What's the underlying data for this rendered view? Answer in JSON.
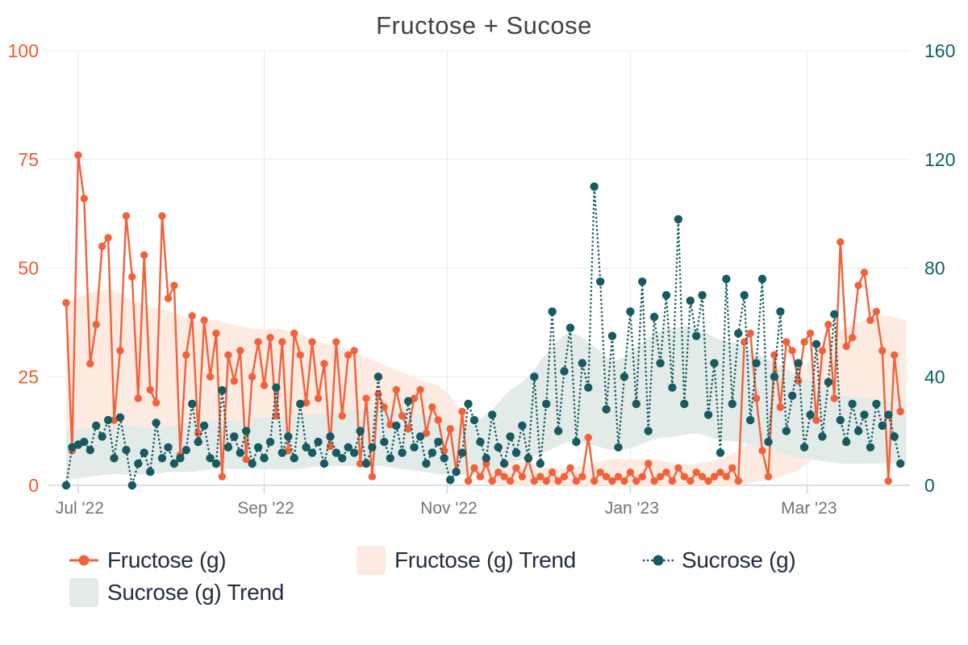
{
  "title": "Fructose + Sucose",
  "legend": {
    "items": [
      {
        "label": "Fructose (g)",
        "marker": "line-dot",
        "color": "#f2613a"
      },
      {
        "label": "Fructose (g) Trend",
        "marker": "area-swatch",
        "color": "#fdebe2"
      },
      {
        "label": "Sucrose (g)",
        "marker": "dotted-dot",
        "color": "#175a61"
      },
      {
        "label": "Sucrose (g) Trend",
        "marker": "area-swatch",
        "color": "#e3ebe9"
      }
    ]
  },
  "chart_data": {
    "type": "line",
    "title": "Fructose + Sucose",
    "x_start_date": "2022-06-27",
    "x_step_days": 2,
    "x_tick_labels": [
      "Jul '22",
      "Sep '22",
      "Nov '22",
      "Jan '23",
      "Mar '23"
    ],
    "x_tick_day_offsets": [
      4,
      66,
      127,
      188,
      247
    ],
    "x_label_color": "#6e747c",
    "y_left": {
      "ticks": [
        0,
        25,
        50,
        75,
        100
      ],
      "lim": [
        0,
        100
      ],
      "color": "#f15a2a"
    },
    "y_right": {
      "ticks": [
        0,
        40,
        80,
        120,
        160
      ],
      "lim": [
        0,
        160
      ],
      "color": "#0e6066"
    },
    "grid": true,
    "legend_position": "bottom",
    "series": [
      {
        "name": "Fructose (g)",
        "axis": "left",
        "color": "#f2613a",
        "line_style": "solid",
        "marker": "circle",
        "values": [
          42,
          8,
          76,
          66,
          28,
          37,
          55,
          57,
          15,
          31,
          62,
          48,
          20,
          53,
          22,
          19,
          62,
          43,
          46,
          7,
          30,
          39,
          12,
          38,
          25,
          35,
          2,
          30,
          24,
          31,
          6,
          25,
          33,
          23,
          34,
          16,
          33,
          8,
          35,
          30,
          19,
          33,
          20,
          28,
          9,
          33,
          16,
          30,
          31,
          5,
          20,
          2,
          21,
          18,
          14,
          22,
          16,
          13,
          20,
          22,
          12,
          18,
          15,
          8,
          13,
          3,
          17,
          1,
          4,
          2,
          5,
          1,
          3,
          2,
          1,
          4,
          2,
          6,
          1,
          2,
          1,
          3,
          1,
          2,
          4,
          1,
          2,
          11,
          1,
          3,
          2,
          1,
          2,
          1,
          3,
          1,
          2,
          5,
          1,
          2,
          3,
          1,
          4,
          2,
          1,
          3,
          2,
          1,
          2,
          3,
          2,
          4,
          1,
          33,
          35,
          20,
          8,
          2,
          30,
          18,
          33,
          31,
          24,
          33,
          35,
          15,
          31,
          37,
          20,
          56,
          32,
          34,
          46,
          49,
          38,
          40,
          31,
          1,
          30,
          17
        ]
      },
      {
        "name": "Sucrose (g)",
        "axis": "right",
        "color": "#175a61",
        "line_style": "dotted",
        "marker": "circle",
        "values": [
          0,
          14,
          15,
          16,
          13,
          22,
          18,
          24,
          10,
          25,
          13,
          0,
          8,
          12,
          5,
          23,
          10,
          14,
          8,
          10,
          13,
          30,
          16,
          22,
          10,
          8,
          35,
          14,
          18,
          12,
          20,
          8,
          14,
          10,
          16,
          36,
          12,
          18,
          10,
          30,
          14,
          12,
          16,
          8,
          18,
          12,
          10,
          14,
          12,
          20,
          8,
          14,
          40,
          16,
          10,
          22,
          12,
          31,
          14,
          18,
          8,
          12,
          16,
          10,
          2,
          5,
          12,
          30,
          24,
          16,
          10,
          26,
          14,
          8,
          18,
          12,
          22,
          10,
          40,
          8,
          30,
          64,
          20,
          42,
          58,
          16,
          45,
          36,
          110,
          75,
          28,
          55,
          14,
          40,
          64,
          30,
          75,
          20,
          62,
          45,
          70,
          36,
          98,
          30,
          68,
          55,
          70,
          26,
          45,
          12,
          76,
          30,
          56,
          70,
          24,
          45,
          76,
          16,
          40,
          64,
          20,
          33,
          45,
          14,
          26,
          52,
          18,
          38,
          63,
          24,
          16,
          30,
          20,
          26,
          14,
          30,
          22,
          26,
          18,
          8
        ]
      }
    ],
    "trend_bands": [
      {
        "name": "Fructose (g) Trend",
        "axis": "left",
        "fill": "#fdebe2",
        "step_days": 7,
        "range_lo_hi": [
          [
            7,
            42
          ],
          [
            9,
            44
          ],
          [
            11,
            45
          ],
          [
            12,
            43
          ],
          [
            11,
            41
          ],
          [
            10,
            40
          ],
          [
            10,
            38
          ],
          [
            11,
            38
          ],
          [
            12,
            37
          ],
          [
            13,
            36
          ],
          [
            14,
            36
          ],
          [
            15,
            35
          ],
          [
            14,
            33
          ],
          [
            12,
            32
          ],
          [
            11,
            30
          ],
          [
            10,
            28
          ],
          [
            9,
            26
          ],
          [
            8,
            24
          ],
          [
            6,
            22
          ],
          [
            3,
            16
          ],
          [
            1,
            9
          ],
          [
            0,
            6
          ],
          [
            0,
            5
          ],
          [
            0,
            4
          ],
          [
            0,
            4
          ],
          [
            0,
            5
          ],
          [
            0,
            6
          ],
          [
            0,
            6
          ],
          [
            0,
            6
          ],
          [
            0,
            5
          ],
          [
            0,
            5
          ],
          [
            0,
            6
          ],
          [
            0,
            8
          ],
          [
            1,
            12
          ],
          [
            2,
            18
          ],
          [
            4,
            26
          ],
          [
            8,
            32
          ],
          [
            12,
            36
          ],
          [
            14,
            38
          ],
          [
            15,
            39
          ],
          [
            14,
            38
          ]
        ]
      },
      {
        "name": "Sucrose (g) Trend",
        "axis": "right",
        "fill": "#e3ebe9",
        "step_days": 7,
        "range_lo_hi": [
          [
            2,
            20
          ],
          [
            3,
            21
          ],
          [
            4,
            22
          ],
          [
            4,
            22
          ],
          [
            4,
            21
          ],
          [
            5,
            22
          ],
          [
            5,
            23
          ],
          [
            6,
            24
          ],
          [
            6,
            24
          ],
          [
            6,
            25
          ],
          [
            6,
            25
          ],
          [
            6,
            26
          ],
          [
            7,
            26
          ],
          [
            7,
            27
          ],
          [
            7,
            28
          ],
          [
            7,
            28
          ],
          [
            6,
            27
          ],
          [
            5,
            26
          ],
          [
            4,
            24
          ],
          [
            4,
            22
          ],
          [
            5,
            26
          ],
          [
            8,
            34
          ],
          [
            10,
            40
          ],
          [
            13,
            50
          ],
          [
            16,
            56
          ],
          [
            15,
            52
          ],
          [
            13,
            46
          ],
          [
            14,
            50
          ],
          [
            17,
            56
          ],
          [
            18,
            58
          ],
          [
            19,
            58
          ],
          [
            17,
            54
          ],
          [
            16,
            52
          ],
          [
            14,
            48
          ],
          [
            12,
            44
          ],
          [
            10,
            40
          ],
          [
            9,
            36
          ],
          [
            8,
            33
          ],
          [
            8,
            32
          ],
          [
            8,
            31
          ],
          [
            8,
            30
          ]
        ]
      }
    ]
  },
  "style": {
    "grid_color": "#e8eaea",
    "axis_line_color": "#ccd7e2",
    "title_color": "#3f4347",
    "legend_text_color": "#232d3e"
  }
}
